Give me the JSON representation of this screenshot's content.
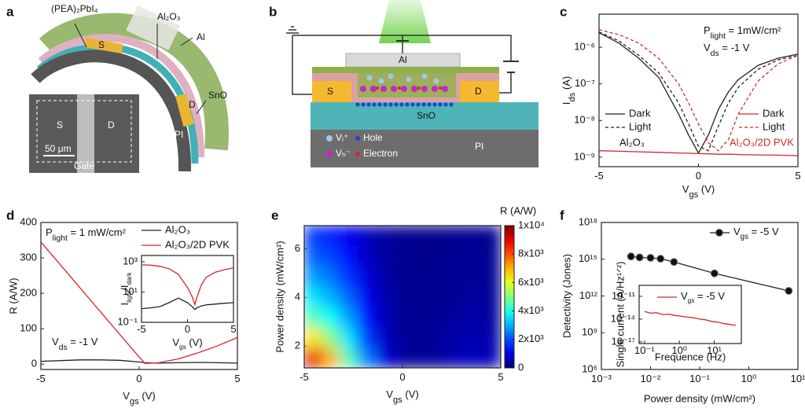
{
  "diagrams": [
    {
      "panel": "a",
      "labels": [
        "(PEA)₂PbI₄",
        "Al₂O₃",
        "Al",
        "S",
        "D",
        "SnO",
        "PI",
        "S",
        "D",
        "50 μm",
        "Gate"
      ]
    },
    {
      "panel": "b",
      "labels": [
        "Al",
        "S",
        "D",
        "SnO",
        "PI",
        "Vᵢ⁺",
        "Hole",
        "Vₕ⁻",
        "Electron"
      ]
    }
  ],
  "chart_data": [
    {
      "type": "line",
      "panel": "c",
      "ylog": true,
      "xlabel": [
        "V",
        "gs",
        " (V)"
      ],
      "ylabel": [
        "I",
        "ds",
        " (A)"
      ],
      "annotations": [
        [
          "P",
          "light",
          " = 1mW/cm²"
        ],
        [
          "V",
          "ds",
          " = -1 V"
        ],
        "Al₂O₃",
        "Al₂O₃/2D PVK"
      ],
      "xlim": [
        -5,
        5
      ],
      "ylim": [
        5.5e-10,
        8e-06
      ],
      "xticks": [
        -5,
        0,
        5
      ],
      "yticks": [
        {
          "value": 1e-09,
          "label": "10⁻⁹"
        },
        {
          "value": 1e-08,
          "label": "10⁻⁸"
        },
        {
          "value": 1e-07,
          "label": "10⁻⁷"
        },
        {
          "value": 1e-06,
          "label": "10⁻⁶"
        }
      ],
      "x": [
        -5,
        -4,
        -3,
        -2,
        -1,
        -0.5,
        0,
        0.5,
        1,
        1.5,
        2,
        3,
        4,
        5
      ],
      "series": [
        {
          "name": "Dark",
          "color": "#222222",
          "dash": false,
          "values": [
            2.5e-06,
            1.3e-06,
            5e-07,
            1.5e-07,
            1.5e-08,
            4e-09,
            1.3e-09,
            4e-09,
            2e-08,
            6e-08,
            1.3e-07,
            3.2e-07,
            5e-07,
            6.5e-07
          ]
        },
        {
          "name": "Light",
          "color": "#222222",
          "dash": true,
          "values": [
            2.6e-06,
            1.5e-06,
            6e-07,
            2e-07,
            3e-08,
            8e-09,
            2e-09,
            1.5e-09,
            7e-09,
            3e-08,
            8e-08,
            2.5e-07,
            4.5e-07,
            6e-07
          ]
        },
        {
          "name": "Dark",
          "color": "#d62728",
          "dash": false,
          "values": [
            1.5e-09,
            1.45e-09,
            1.4e-09,
            1.35e-09,
            1.3e-09,
            1.28e-09,
            1.25e-09,
            1.23e-09,
            1.2e-09,
            1.2e-09,
            1.18e-09,
            1.15e-09,
            1.13e-09,
            1.1e-09
          ]
        },
        {
          "name": "Light",
          "color": "#d62728",
          "dash": true,
          "values": [
            3e-06,
            2.2e-06,
            1.3e-06,
            5e-07,
            1e-07,
            3e-08,
            8e-09,
            2.5e-09,
            1.5e-09,
            3e-09,
            1.5e-08,
            1.2e-07,
            3.5e-07,
            6e-07
          ]
        }
      ]
    },
    {
      "type": "line",
      "panel": "d",
      "ylog": false,
      "xlabel": [
        "V",
        "gs",
        " (V)"
      ],
      "ylabel": "R (A/W)",
      "annotations": [
        [
          "P",
          "light",
          " = 1 mW/cm²"
        ],
        [
          "V",
          "ds",
          " = -1 V"
        ]
      ],
      "xlim": [
        -5,
        5
      ],
      "ylim": [
        -15,
        400
      ],
      "xticks": [
        -5,
        0,
        5
      ],
      "yticks": [
        0,
        100,
        200,
        300,
        400
      ],
      "x": [
        -5,
        -4,
        -3,
        -2,
        -1,
        0,
        0.3,
        1,
        2,
        3,
        4,
        5
      ],
      "series": [
        {
          "name": "Al₂O₃",
          "color": "#222222",
          "dash": false,
          "values": [
            8,
            10,
            12,
            12,
            11,
            6,
            4,
            3,
            4,
            5,
            4,
            3
          ]
        },
        {
          "name": "Al₂O₃/2D PVK",
          "color": "#d62728",
          "dash": false,
          "values": [
            345,
            280,
            215,
            150,
            85,
            20,
            2,
            4,
            15,
            32,
            52,
            75
          ]
        }
      ]
    },
    {
      "type": "line",
      "ylog": true,
      "xlabel": [
        "V",
        "gs",
        " (V)"
      ],
      "ylabel": [
        "I",
        "light",
        "/I",
        "dark"
      ],
      "xlim": [
        -5,
        5
      ],
      "ylim": [
        0.1,
        2600
      ],
      "xticks": [
        -5,
        0,
        5
      ],
      "yticks": [
        {
          "value": 0.1,
          "label": "10⁻¹"
        },
        {
          "value": 10,
          "label": "10¹"
        },
        {
          "value": 1000,
          "label": "10³"
        }
      ],
      "x": [
        -5,
        -4,
        -3,
        -2,
        -1,
        0,
        0.5,
        0.8,
        1,
        1.5,
        2,
        3,
        4,
        5
      ],
      "series": [
        {
          "color": "#d62728",
          "dash": false,
          "values": [
            630,
            600,
            500,
            350,
            150,
            20,
            5,
            1.5,
            4,
            30,
            90,
            200,
            300,
            400
          ]
        },
        {
          "color": "#222222",
          "dash": false,
          "values": [
            0.8,
            0.9,
            1.1,
            2,
            4,
            2,
            1.1,
            0.7,
            0.9,
            1.2,
            1.4,
            1.6,
            1.8,
            2
          ]
        }
      ]
    },
    {
      "type": "heatmap",
      "panel": "e",
      "xlabel": [
        "V",
        "gs",
        " (V)"
      ],
      "ylabel": "Power density (mW/cm²)",
      "clabel": "R (A/W)",
      "xlim": [
        -5,
        5
      ],
      "ylim": [
        1.1,
        6.95
      ],
      "xticks": [
        -5,
        0,
        5
      ],
      "yticks": [
        2,
        4,
        6
      ],
      "clim": [
        0,
        10000
      ],
      "cticks": [
        0,
        {
          "value": 2000,
          "label": "2x10³"
        },
        {
          "value": 4000,
          "label": "4x10³"
        },
        {
          "value": 6000,
          "label": "6x10³"
        },
        {
          "value": 8000,
          "label": "8x10³"
        },
        {
          "value": 10000,
          "label": "1x10⁴"
        }
      ],
      "x": [
        -5,
        -4,
        -3,
        -2,
        -1,
        0,
        1,
        2,
        3,
        4,
        5
      ],
      "y": [
        1,
        2,
        3,
        4,
        5,
        6,
        7
      ],
      "z": [
        [
          9000,
          7000,
          4500,
          2500,
          900,
          300,
          200,
          300,
          500,
          600,
          500
        ],
        [
          6500,
          5000,
          3500,
          1800,
          700,
          250,
          200,
          250,
          400,
          500,
          400
        ],
        [
          4500,
          3800,
          2800,
          1400,
          600,
          200,
          180,
          200,
          300,
          400,
          300
        ],
        [
          3500,
          3000,
          2200,
          1100,
          500,
          200,
          150,
          180,
          250,
          300,
          250
        ],
        [
          2800,
          2400,
          1700,
          900,
          400,
          180,
          150,
          160,
          200,
          250,
          200
        ],
        [
          2200,
          1900,
          1400,
          700,
          350,
          160,
          140,
          150,
          180,
          200,
          180
        ],
        [
          1800,
          1500,
          1100,
          600,
          300,
          150,
          130,
          140,
          150,
          180,
          150
        ]
      ]
    },
    {
      "type": "line",
      "panel": "f",
      "xlog": true,
      "ylog": true,
      "marker": true,
      "xlabel": "Power density (mW/cm²)",
      "ylabel": "Detectivity (Jones)",
      "xlim": [
        0.001,
        10
      ],
      "ylim": [
        1000000.0,
        1e+18
      ],
      "xticks": [
        {
          "value": 0.001,
          "label": "10⁻³"
        },
        {
          "value": 0.01,
          "label": "10⁻²"
        },
        {
          "value": 0.1,
          "label": "10⁻¹"
        },
        {
          "value": 1,
          "label": "10⁰"
        },
        {
          "value": 10,
          "label": "10¹"
        }
      ],
      "yticks": [
        {
          "value": 1000000.0,
          "label": "10⁶"
        },
        {
          "value": 1000000000.0,
          "label": "10⁹"
        },
        {
          "value": 1000000000000.0,
          "label": "10¹²"
        },
        {
          "value": 1000000000000000.0,
          "label": "10¹⁵"
        },
        {
          "value": 1e+18,
          "label": "10¹⁸"
        }
      ],
      "x": [
        0.004,
        0.006,
        0.01,
        0.016,
        0.03,
        0.2,
        6.5
      ],
      "series": [
        {
          "name": [
            "V",
            "gs",
            " = -5 V"
          ],
          "color": "#222222",
          "dash": false,
          "values": [
            1700000000000000.0,
            1400000000000000.0,
            1300000000000000.0,
            1100000000000000.0,
            600000000000000.0,
            70000000000000.0,
            2600000000000.0
          ]
        }
      ]
    },
    {
      "type": "line",
      "xlog": true,
      "ylog": true,
      "xlabel": "Frequence (Hz)",
      "ylabel": "Single current (A/Hz¹ᐟ²)",
      "xlim": [
        0.07,
        60
      ],
      "ylim": [
        6e-18,
        2.8e-10
      ],
      "xticks": [
        {
          "value": 0.1,
          "label": "10⁻¹"
        },
        {
          "value": 1,
          "label": "10⁰"
        },
        {
          "value": 10,
          "label": "10¹"
        }
      ],
      "yticks": [
        {
          "value": 1e-17,
          "label": "10⁻¹⁷"
        },
        {
          "value": 1e-14,
          "label": "10⁻¹⁴"
        },
        {
          "value": 1e-11,
          "label": "10⁻¹¹"
        }
      ],
      "x": [
        0.1,
        0.15,
        0.22,
        0.33,
        0.5,
        0.75,
        1.1,
        1.7,
        2.5,
        3.8,
        5.6,
        8.4,
        12.6,
        19,
        28,
        42
      ],
      "series": [
        {
          "name": [
            "V",
            "gs",
            " = -5 V"
          ],
          "color": "#d62728",
          "dash": false,
          "values": [
            1e-13,
            6e-14,
            7e-14,
            4e-14,
            4.5e-14,
            3e-14,
            2.5e-14,
            1.8e-14,
            1.5e-14,
            1e-14,
            8e-15,
            5e-15,
            4e-15,
            2.5e-15,
            2e-15,
            1.5e-15
          ]
        }
      ]
    }
  ]
}
